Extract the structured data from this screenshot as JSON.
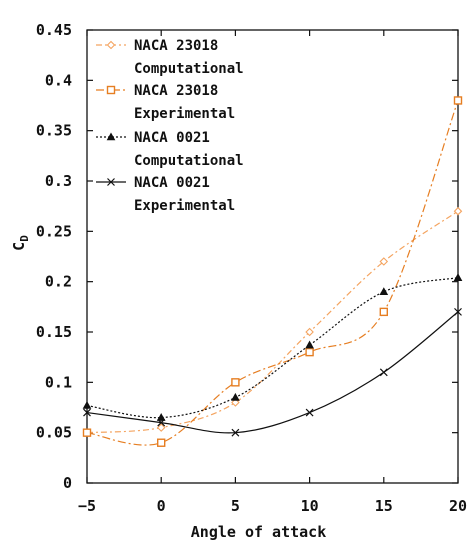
{
  "chart_data": {
    "type": "line",
    "xlabel": "Angle of attack",
    "ylabel_main": "C",
    "ylabel_sub": "D",
    "xlim": [
      -5,
      20
    ],
    "ylim": [
      0,
      0.45
    ],
    "xticks": [
      -5,
      0,
      5,
      10,
      15,
      20
    ],
    "xtick_labels": [
      "−5",
      "0",
      "5",
      "10",
      "15",
      "20"
    ],
    "yticks": [
      0,
      0.05,
      0.1,
      0.15,
      0.2,
      0.25,
      0.3,
      0.35,
      0.4,
      0.45
    ],
    "ytick_labels": [
      "0",
      "0.05",
      "0.1",
      "0.15",
      "0.2",
      "0.25",
      "0.3",
      "0.35",
      "0.4",
      "0.45"
    ],
    "grid": false,
    "legend_position": "top-left",
    "series": [
      {
        "legend_lines": [
          "NACA 23018",
          "Computational"
        ],
        "color": "#f4a460",
        "dash": "6 3 2 3",
        "marker": "diamond",
        "x": [
          -5,
          0,
          5,
          10,
          15,
          20
        ],
        "y": [
          0.05,
          0.055,
          0.08,
          0.15,
          0.22,
          0.27
        ]
      },
      {
        "legend_lines": [
          "NACA 23018",
          "Experimental"
        ],
        "color": "#e67e22",
        "dash": "8 3 2 3",
        "marker": "square",
        "x": [
          -5,
          0,
          5,
          10,
          15,
          20
        ],
        "y": [
          0.05,
          0.04,
          0.1,
          0.13,
          0.17,
          0.38
        ]
      },
      {
        "legend_lines": [
          "NACA 0021",
          "Computational"
        ],
        "color": "#111111",
        "dash": "2 2",
        "marker": "triangle",
        "x": [
          -5,
          0,
          5,
          10,
          15,
          20
        ],
        "y": [
          0.077,
          0.065,
          0.085,
          0.137,
          0.19,
          0.204
        ]
      },
      {
        "legend_lines": [
          "NACA 0021",
          "Experimental"
        ],
        "color": "#111111",
        "dash": "",
        "marker": "x",
        "x": [
          -5,
          0,
          5,
          10,
          15,
          20
        ],
        "y": [
          0.07,
          0.06,
          0.05,
          0.07,
          0.11,
          0.17
        ]
      }
    ]
  }
}
